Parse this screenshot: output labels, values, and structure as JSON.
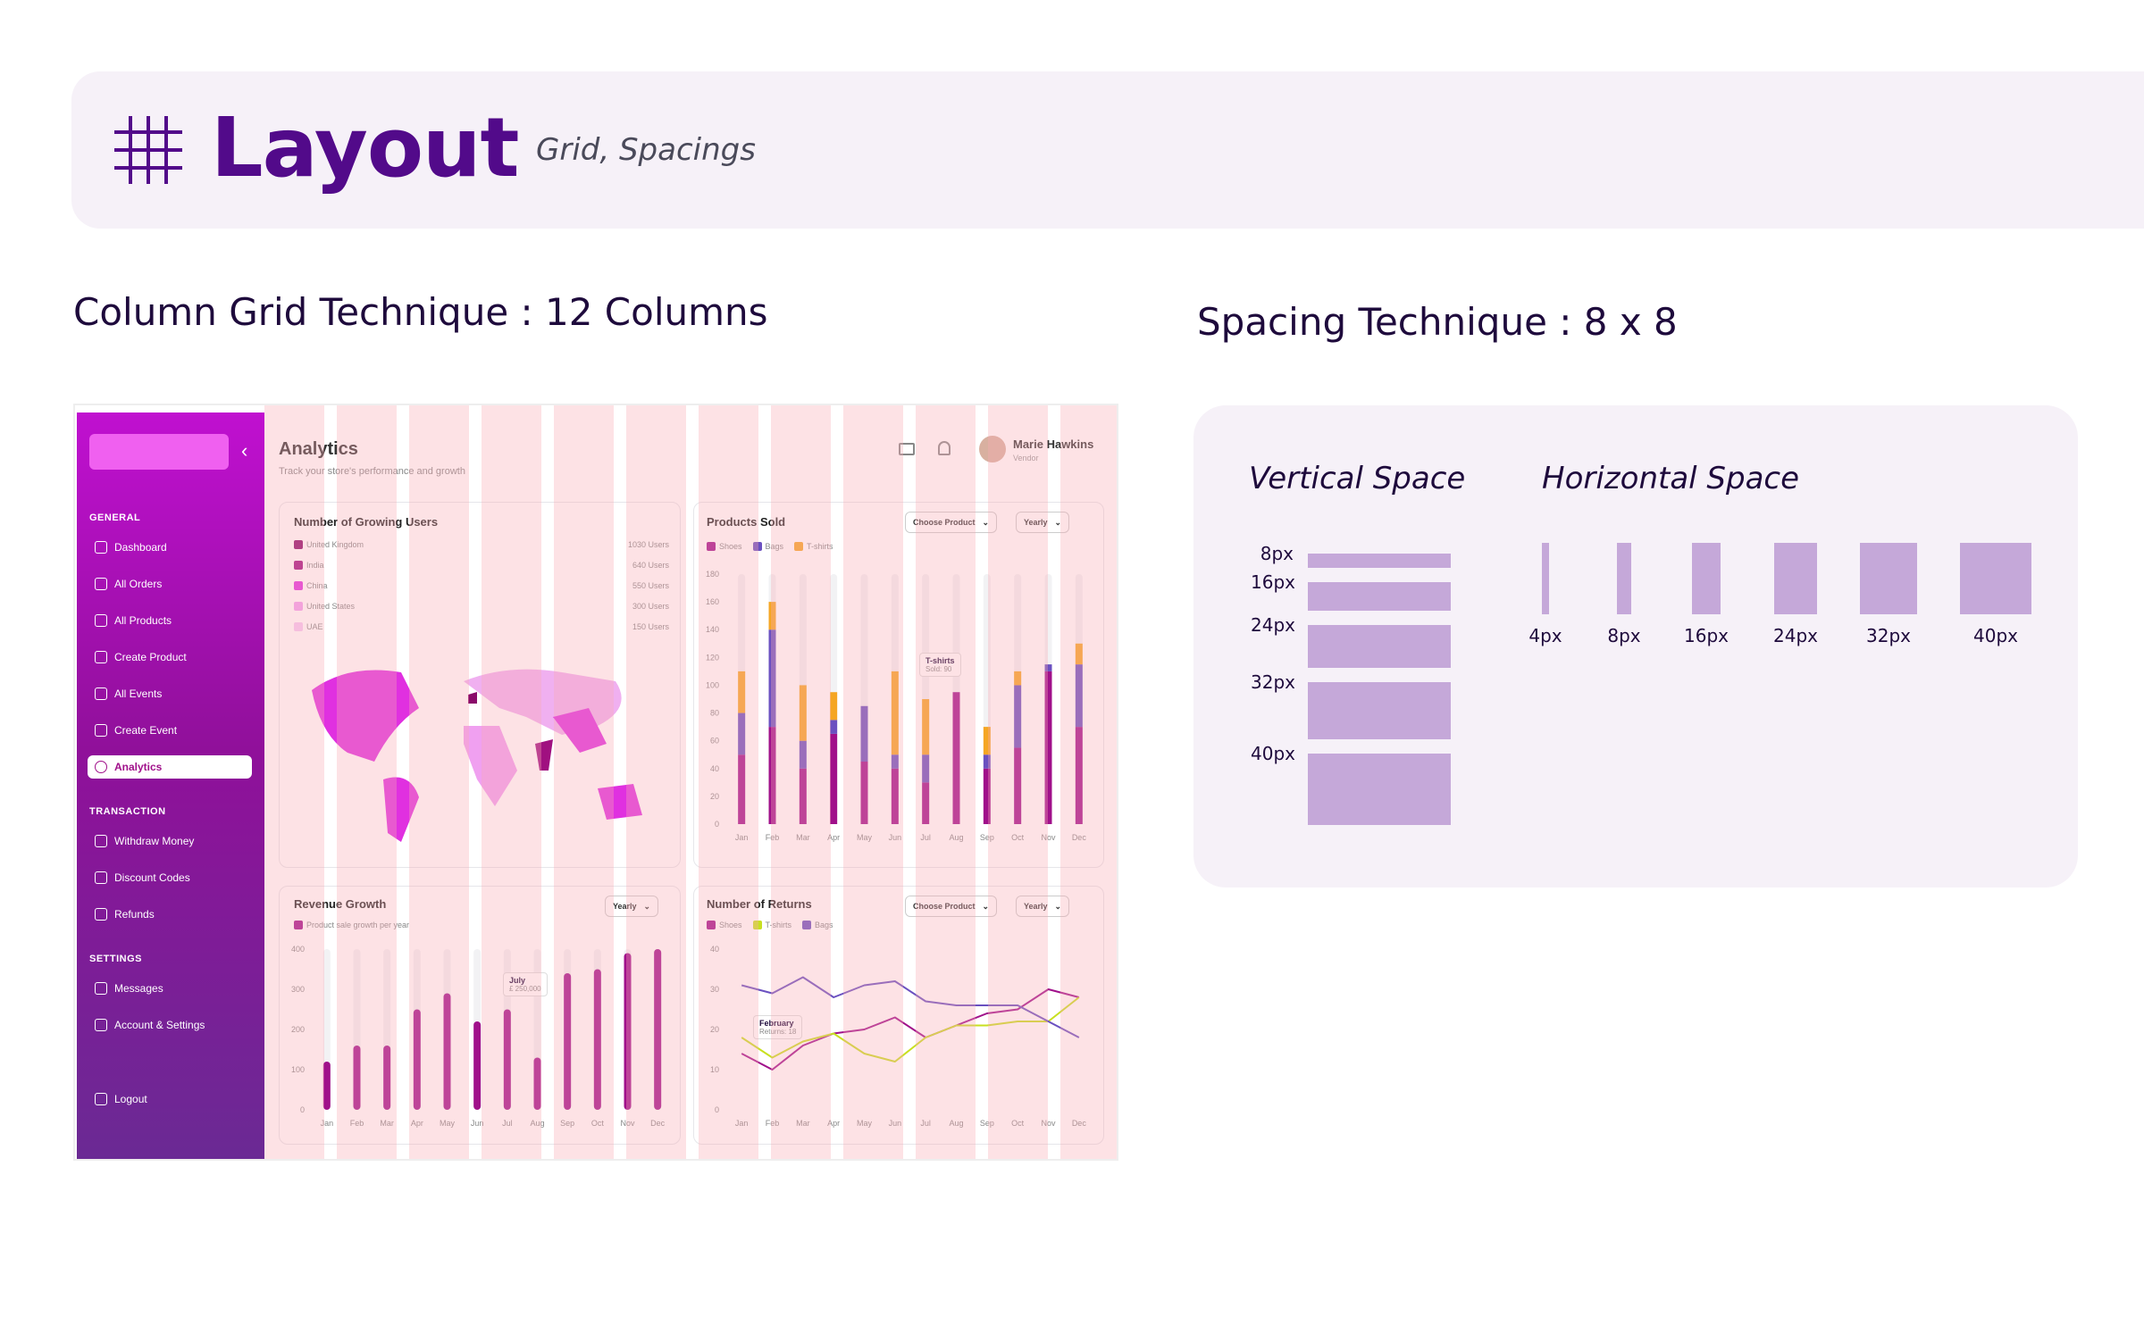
{
  "header": {
    "title": "Layout",
    "subtitle": "Grid, Spacings"
  },
  "sections": {
    "grid_title": "Column Grid Technique : 12 Columns",
    "spacing_title": "Spacing Technique : 8 x 8"
  },
  "colors": {
    "accent": "#520a8a",
    "panel": "#f6f1f8",
    "swatch": "#c5a8d9",
    "grid_overlay": "#f8aab2"
  },
  "mockup": {
    "sidebar": {
      "sections": [
        {
          "heading": "GENERAL",
          "items": [
            "Dashboard",
            "All Orders",
            "All Products",
            "Create Product",
            "All Events",
            "Create Event",
            "Analytics"
          ]
        },
        {
          "heading": "TRANSACTION",
          "items": [
            "Withdraw Money",
            "Discount Codes",
            "Refunds"
          ]
        },
        {
          "heading": "SETTINGS",
          "items": [
            "Messages",
            "Account & Settings"
          ]
        }
      ],
      "active_item": "Analytics",
      "logout": "Logout"
    },
    "page": {
      "title": "Analytics",
      "subtitle": "Track your store's performance and growth"
    },
    "user": {
      "name": "Marie Hawkins",
      "role": "Vendor"
    },
    "growing_users": {
      "title": "Number of Growing Users",
      "rows": [
        {
          "country": "United Kingdom",
          "users": "1030 Users",
          "color": "#8a0a6a"
        },
        {
          "country": "India",
          "users": "640 Users",
          "color": "#a01080"
        },
        {
          "country": "China",
          "users": "550 Users",
          "color": "#e030e0"
        },
        {
          "country": "United States",
          "users": "300 Users",
          "color": "#f0a0f0"
        },
        {
          "country": "UAE",
          "users": "150 Users",
          "color": "#f5c8f5"
        }
      ]
    },
    "products_sold": {
      "title": "Products Sold",
      "dropdown1": "Choose Product",
      "dropdown2": "Yearly",
      "tooltip_title": "T-shirts",
      "tooltip_value": "Sold: 90"
    },
    "revenue": {
      "title": "Revenue Growth",
      "dropdown": "Yearly",
      "legend": "Product sale growth per year",
      "tooltip_title": "July",
      "tooltip_value": "£ 250,000"
    },
    "returns": {
      "title": "Number of Returns",
      "dropdown1": "Choose Product",
      "dropdown2": "Yearly",
      "tooltip_title": "February",
      "tooltip_value": "Returns: 18"
    }
  },
  "chart_data": [
    {
      "type": "bar",
      "title": "Products Sold",
      "categories": [
        "Jan",
        "Feb",
        "Mar",
        "Apr",
        "May",
        "Jun",
        "Jul",
        "Aug",
        "Sep",
        "Oct",
        "Nov",
        "Dec"
      ],
      "ylim": [
        0,
        180
      ],
      "yticks": [
        "180",
        "160",
        "140",
        "120",
        "100",
        "80",
        "60",
        "40",
        "20",
        "0"
      ],
      "series": [
        {
          "name": "Shoes",
          "color": "#a0108a",
          "values": [
            50,
            70,
            40,
            65,
            45,
            40,
            30,
            95,
            40,
            55,
            110,
            70
          ]
        },
        {
          "name": "Bags",
          "color": "#6a50c0",
          "values": [
            30,
            70,
            20,
            10,
            40,
            10,
            20,
            0,
            10,
            45,
            5,
            45
          ]
        },
        {
          "name": "T-shirts",
          "color": "#f5a623",
          "values": [
            30,
            20,
            40,
            20,
            0,
            60,
            40,
            0,
            20,
            10,
            0,
            15
          ]
        }
      ]
    },
    {
      "type": "bar",
      "title": "Revenue Growth",
      "categories": [
        "Jan",
        "Feb",
        "Mar",
        "Apr",
        "May",
        "Jun",
        "Jul",
        "Aug",
        "Sep",
        "Oct",
        "Nov",
        "Dec"
      ],
      "ylim": [
        0,
        400
      ],
      "yticks": [
        "400",
        "300",
        "200",
        "100",
        "0"
      ],
      "series": [
        {
          "name": "Product sale growth per year",
          "color": "#a0108a",
          "values": [
            120,
            160,
            160,
            250,
            290,
            220,
            250,
            130,
            340,
            350,
            390,
            420
          ]
        }
      ]
    },
    {
      "type": "line",
      "title": "Number of Returns",
      "categories": [
        "Jan",
        "Feb",
        "Mar",
        "Apr",
        "May",
        "Jun",
        "Jul",
        "Aug",
        "Sep",
        "Oct",
        "Nov",
        "Dec"
      ],
      "ylim": [
        0,
        40
      ],
      "yticks": [
        "40",
        "30",
        "20",
        "10",
        "0"
      ],
      "series": [
        {
          "name": "Shoes",
          "color": "#a0108a",
          "values": [
            14,
            10,
            16,
            19,
            20,
            23,
            18,
            21,
            24,
            25,
            30,
            28
          ]
        },
        {
          "name": "T-shirts",
          "color": "#c8e020",
          "values": [
            18,
            13,
            17,
            19,
            14,
            12,
            18,
            21,
            21,
            22,
            22,
            28
          ]
        },
        {
          "name": "Bags",
          "color": "#6a50c0",
          "values": [
            31,
            29,
            33,
            28,
            31,
            32,
            27,
            26,
            26,
            26,
            22,
            18
          ]
        }
      ]
    }
  ],
  "spacing": {
    "vertical_title": "Vertical Space",
    "horizontal_title": "Horizontal Space",
    "vertical": [
      "8px",
      "16px",
      "24px",
      "32px",
      "40px"
    ],
    "horizontal": [
      "4px",
      "8px",
      "16px",
      "24px",
      "32px",
      "40px"
    ]
  }
}
